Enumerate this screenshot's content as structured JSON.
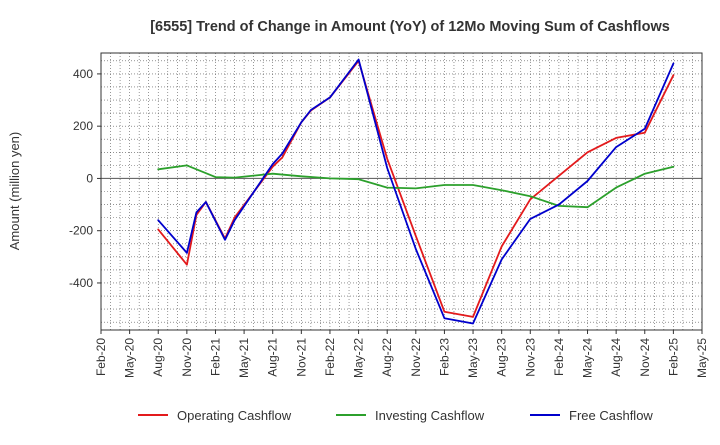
{
  "chart_data": {
    "type": "line",
    "title": "[6555]  Trend of Change in Amount (YoY) of 12Mo Moving Sum of Cashflows",
    "xlabel": "",
    "ylabel": "Amount (million yen)",
    "ylim": [
      -580,
      480
    ],
    "yticks": [
      -400,
      -200,
      0,
      200,
      400
    ],
    "x_ticks": [
      "Feb-20",
      "May-20",
      "Aug-20",
      "Nov-20",
      "Feb-21",
      "May-21",
      "Aug-21",
      "Nov-21",
      "Feb-22",
      "May-22",
      "Aug-22",
      "Nov-22",
      "Feb-23",
      "May-23",
      "Aug-23",
      "Nov-23",
      "Feb-24",
      "May-24",
      "Aug-24",
      "Nov-24",
      "Feb-25",
      "May-25"
    ],
    "grid": true,
    "legend_position": "bottom",
    "series": [
      {
        "name": "Operating Cashflow",
        "color": "#e31a1c",
        "points": [
          [
            "Aug-20",
            -195
          ],
          [
            "Nov-20",
            -330
          ],
          [
            "Dec-20",
            -140
          ],
          [
            "Jan-21",
            -90
          ],
          [
            "Mar-21",
            -230
          ],
          [
            "Apr-21",
            -150
          ],
          [
            "Aug-21",
            45
          ],
          [
            "Sep-21",
            80
          ],
          [
            "Nov-21",
            215
          ],
          [
            "Dec-21",
            260
          ],
          [
            "Feb-22",
            310
          ],
          [
            "May-22",
            450
          ],
          [
            "Aug-22",
            75
          ],
          [
            "Nov-22",
            -220
          ],
          [
            "Feb-23",
            -510
          ],
          [
            "May-23",
            -530
          ],
          [
            "Aug-23",
            -260
          ],
          [
            "Nov-23",
            -80
          ],
          [
            "Feb-24",
            10
          ],
          [
            "May-24",
            100
          ],
          [
            "Aug-24",
            155
          ],
          [
            "Nov-24",
            175
          ],
          [
            "Feb-25",
            395
          ]
        ]
      },
      {
        "name": "Investing Cashflow",
        "color": "#2ca02c",
        "points": [
          [
            "Aug-20",
            35
          ],
          [
            "Nov-20",
            50
          ],
          [
            "Feb-21",
            5
          ],
          [
            "Apr-21",
            3
          ],
          [
            "Aug-21",
            18
          ],
          [
            "Nov-21",
            8
          ],
          [
            "Feb-22",
            0
          ],
          [
            "May-22",
            -3
          ],
          [
            "Aug-22",
            -35
          ],
          [
            "Nov-22",
            -38
          ],
          [
            "Feb-23",
            -25
          ],
          [
            "May-23",
            -25
          ],
          [
            "Aug-23",
            -45
          ],
          [
            "Nov-23",
            -68
          ],
          [
            "Feb-24",
            -105
          ],
          [
            "May-24",
            -110
          ],
          [
            "Aug-24",
            -35
          ],
          [
            "Nov-24",
            18
          ],
          [
            "Feb-25",
            45
          ]
        ]
      },
      {
        "name": "Free Cashflow",
        "color": "#0000cc",
        "points": [
          [
            "Aug-20",
            -160
          ],
          [
            "Nov-20",
            -285
          ],
          [
            "Dec-20",
            -130
          ],
          [
            "Jan-21",
            -90
          ],
          [
            "Mar-21",
            -235
          ],
          [
            "Apr-21",
            -160
          ],
          [
            "Aug-21",
            55
          ],
          [
            "Sep-21",
            95
          ],
          [
            "Nov-21",
            215
          ],
          [
            "Dec-21",
            262
          ],
          [
            "Feb-22",
            310
          ],
          [
            "May-22",
            455
          ],
          [
            "Aug-22",
            40
          ],
          [
            "Nov-22",
            -270
          ],
          [
            "Feb-23",
            -535
          ],
          [
            "May-23",
            -555
          ],
          [
            "Aug-23",
            -310
          ],
          [
            "Nov-23",
            -155
          ],
          [
            "Feb-24",
            -100
          ],
          [
            "May-24",
            -10
          ],
          [
            "Aug-24",
            120
          ],
          [
            "Nov-24",
            190
          ],
          [
            "Feb-25",
            440
          ]
        ]
      }
    ]
  }
}
